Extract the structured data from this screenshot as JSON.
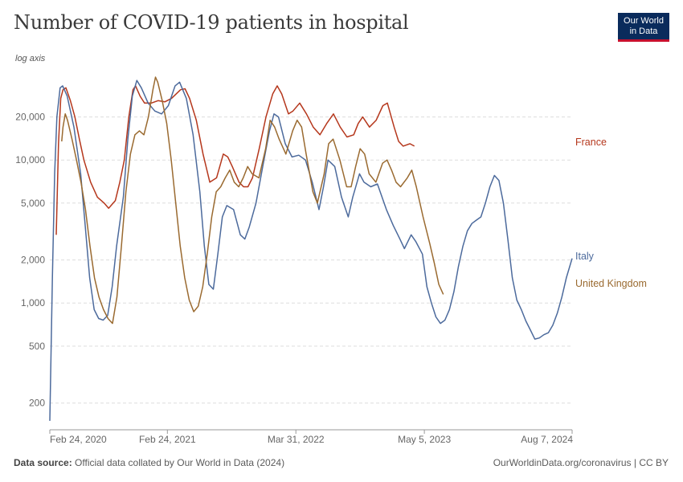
{
  "header": {
    "title": "Number of COVID-19 patients in hospital",
    "logo_line1": "Our World",
    "logo_line2": "in Data",
    "axis_note": "log axis"
  },
  "footer": {
    "source_label": "Data source:",
    "source_text": "Official data collated by Our World in Data (2024)",
    "url_text": "OurWorldinData.org/coronavirus | CC BY"
  },
  "chart_data": {
    "type": "line",
    "title": "Number of COVID-19 patients in hospital",
    "yscale": "log",
    "ylim": [
      130,
      40000
    ],
    "xlim": [
      "2020-02-24",
      "2024-08-07"
    ],
    "y_ticks": [
      {
        "value": 200,
        "label": "200"
      },
      {
        "value": 500,
        "label": "500"
      },
      {
        "value": 1000,
        "label": "1,000"
      },
      {
        "value": 2000,
        "label": "2,000"
      },
      {
        "value": 5000,
        "label": "5,000"
      },
      {
        "value": 10000,
        "label": "10,000"
      },
      {
        "value": 20000,
        "label": "20,000"
      }
    ],
    "x_ticks": [
      {
        "value": "2020-02-24",
        "label": "Feb 24, 2020"
      },
      {
        "value": "2021-02-24",
        "label": "Feb 24, 2021"
      },
      {
        "value": "2022-03-31",
        "label": "Mar 31, 2022"
      },
      {
        "value": "2023-05-05",
        "label": "May 5, 2023"
      },
      {
        "value": "2024-08-07",
        "label": "Aug 7, 2024"
      }
    ],
    "grid": true,
    "legend": "right, labels at line ends",
    "series": [
      {
        "name": "France",
        "color": "#b5371c",
        "points": [
          [
            "2020-03-15",
            3000
          ],
          [
            "2020-03-22",
            13000
          ],
          [
            "2020-03-29",
            27000
          ],
          [
            "2020-04-05",
            31000
          ],
          [
            "2020-04-14",
            32000
          ],
          [
            "2020-04-28",
            26000
          ],
          [
            "2020-05-12",
            20000
          ],
          [
            "2020-05-26",
            14000
          ],
          [
            "2020-06-09",
            10000
          ],
          [
            "2020-06-30",
            7000
          ],
          [
            "2020-07-21",
            5500
          ],
          [
            "2020-08-11",
            5000
          ],
          [
            "2020-08-25",
            4600
          ],
          [
            "2020-09-15",
            5200
          ],
          [
            "2020-09-29",
            7000
          ],
          [
            "2020-10-13",
            10000
          ],
          [
            "2020-10-27",
            20000
          ],
          [
            "2020-11-09",
            31000
          ],
          [
            "2020-11-17",
            33000
          ],
          [
            "2020-12-01",
            28000
          ],
          [
            "2020-12-15",
            25000
          ],
          [
            "2021-01-05",
            25000
          ],
          [
            "2021-01-26",
            26000
          ],
          [
            "2021-02-16",
            25500
          ],
          [
            "2021-03-09",
            27000
          ],
          [
            "2021-04-06",
            31000
          ],
          [
            "2021-04-20",
            31500
          ],
          [
            "2021-05-04",
            27000
          ],
          [
            "2021-05-25",
            19000
          ],
          [
            "2021-06-15",
            11000
          ],
          [
            "2021-07-06",
            7000
          ],
          [
            "2021-07-27",
            7500
          ],
          [
            "2021-08-17",
            11000
          ],
          [
            "2021-08-31",
            10500
          ],
          [
            "2021-09-14",
            9000
          ],
          [
            "2021-10-05",
            7000
          ],
          [
            "2021-10-19",
            6500
          ],
          [
            "2021-11-02",
            6500
          ],
          [
            "2021-11-16",
            7500
          ],
          [
            "2021-12-07",
            12000
          ],
          [
            "2021-12-28",
            20000
          ],
          [
            "2022-01-18",
            29000
          ],
          [
            "2022-02-01",
            33000
          ],
          [
            "2022-02-15",
            29000
          ],
          [
            "2022-03-08",
            21000
          ],
          [
            "2022-03-22",
            22000
          ],
          [
            "2022-04-12",
            25000
          ],
          [
            "2022-05-03",
            21000
          ],
          [
            "2022-05-24",
            17000
          ],
          [
            "2022-06-14",
            15000
          ],
          [
            "2022-07-05",
            18000
          ],
          [
            "2022-07-26",
            21000
          ],
          [
            "2022-08-16",
            17000
          ],
          [
            "2022-09-06",
            14500
          ],
          [
            "2022-09-27",
            15000
          ],
          [
            "2022-10-11",
            18000
          ],
          [
            "2022-10-25",
            20000
          ],
          [
            "2022-11-15",
            17000
          ],
          [
            "2022-12-06",
            19000
          ],
          [
            "2022-12-27",
            24000
          ],
          [
            "2023-01-10",
            25000
          ],
          [
            "2023-01-31",
            17000
          ],
          [
            "2023-02-14",
            13500
          ],
          [
            "2023-02-28",
            12500
          ],
          [
            "2023-03-21",
            13000
          ],
          [
            "2023-04-04",
            12500
          ]
        ]
      },
      {
        "name": "Italy",
        "color": "#4c6a9c",
        "points": [
          [
            "2020-02-24",
            150
          ],
          [
            "2020-03-03",
            1500
          ],
          [
            "2020-03-10",
            8000
          ],
          [
            "2020-03-17",
            20000
          ],
          [
            "2020-03-27",
            32000
          ],
          [
            "2020-04-04",
            33000
          ],
          [
            "2020-04-18",
            28000
          ],
          [
            "2020-05-09",
            17000
          ],
          [
            "2020-05-30",
            8000
          ],
          [
            "2020-06-13",
            3500
          ],
          [
            "2020-06-27",
            1500
          ],
          [
            "2020-07-11",
            900
          ],
          [
            "2020-07-25",
            780
          ],
          [
            "2020-08-08",
            760
          ],
          [
            "2020-08-22",
            820
          ],
          [
            "2020-09-05",
            1300
          ],
          [
            "2020-09-19",
            2500
          ],
          [
            "2020-10-10",
            5500
          ],
          [
            "2020-10-24",
            14000
          ],
          [
            "2020-11-07",
            28000
          ],
          [
            "2020-11-21",
            36000
          ],
          [
            "2020-12-05",
            32000
          ],
          [
            "2020-12-26",
            25000
          ],
          [
            "2021-01-16",
            22000
          ],
          [
            "2021-02-06",
            21000
          ],
          [
            "2021-02-27",
            24000
          ],
          [
            "2021-03-20",
            33000
          ],
          [
            "2021-04-03",
            35000
          ],
          [
            "2021-04-24",
            27000
          ],
          [
            "2021-05-15",
            15000
          ],
          [
            "2021-06-05",
            6000
          ],
          [
            "2021-06-19",
            2500
          ],
          [
            "2021-07-03",
            1350
          ],
          [
            "2021-07-17",
            1250
          ],
          [
            "2021-07-31",
            2200
          ],
          [
            "2021-08-14",
            4000
          ],
          [
            "2021-08-28",
            4800
          ],
          [
            "2021-09-18",
            4500
          ],
          [
            "2021-10-09",
            3000
          ],
          [
            "2021-10-23",
            2800
          ],
          [
            "2021-11-06",
            3400
          ],
          [
            "2021-11-27",
            5000
          ],
          [
            "2021-12-18",
            9000
          ],
          [
            "2022-01-08",
            16000
          ],
          [
            "2022-01-22",
            21000
          ],
          [
            "2022-02-05",
            20000
          ],
          [
            "2022-02-26",
            13000
          ],
          [
            "2022-03-19",
            10500
          ],
          [
            "2022-04-09",
            10800
          ],
          [
            "2022-04-30",
            10000
          ],
          [
            "2022-05-21",
            7000
          ],
          [
            "2022-06-11",
            4500
          ],
          [
            "2022-06-25",
            6500
          ],
          [
            "2022-07-09",
            10000
          ],
          [
            "2022-07-30",
            9000
          ],
          [
            "2022-08-20",
            5500
          ],
          [
            "2022-09-10",
            4000
          ],
          [
            "2022-09-24",
            5500
          ],
          [
            "2022-10-15",
            8000
          ],
          [
            "2022-10-29",
            7000
          ],
          [
            "2022-11-19",
            6500
          ],
          [
            "2022-12-10",
            6800
          ],
          [
            "2023-01-07",
            4500
          ],
          [
            "2023-01-28",
            3500
          ],
          [
            "2023-02-18",
            2800
          ],
          [
            "2023-03-04",
            2400
          ],
          [
            "2023-03-25",
            3000
          ],
          [
            "2023-04-08",
            2700
          ],
          [
            "2023-04-29",
            2200
          ],
          [
            "2023-05-13",
            1300
          ],
          [
            "2023-05-27",
            1000
          ],
          [
            "2023-06-10",
            800
          ],
          [
            "2023-06-24",
            720
          ],
          [
            "2023-07-08",
            760
          ],
          [
            "2023-07-22",
            900
          ],
          [
            "2023-08-05",
            1200
          ],
          [
            "2023-08-19",
            1800
          ],
          [
            "2023-09-02",
            2500
          ],
          [
            "2023-09-16",
            3200
          ],
          [
            "2023-09-30",
            3600
          ],
          [
            "2023-10-14",
            3800
          ],
          [
            "2023-10-28",
            4000
          ],
          [
            "2023-11-11",
            5000
          ],
          [
            "2023-11-25",
            6500
          ],
          [
            "2023-12-09",
            7800
          ],
          [
            "2023-12-23",
            7200
          ],
          [
            "2024-01-06",
            5000
          ],
          [
            "2024-01-20",
            2800
          ],
          [
            "2024-02-03",
            1500
          ],
          [
            "2024-02-17",
            1050
          ],
          [
            "2024-03-02",
            900
          ],
          [
            "2024-03-16",
            750
          ],
          [
            "2024-03-30",
            650
          ],
          [
            "2024-04-13",
            560
          ],
          [
            "2024-04-27",
            570
          ],
          [
            "2024-05-11",
            600
          ],
          [
            "2024-05-25",
            620
          ],
          [
            "2024-06-08",
            700
          ],
          [
            "2024-06-22",
            850
          ],
          [
            "2024-07-06",
            1100
          ],
          [
            "2024-07-20",
            1500
          ],
          [
            "2024-08-07",
            2050
          ]
        ]
      },
      {
        "name": "United Kingdom",
        "color": "#9a6a30",
        "points": [
          [
            "2020-04-01",
            13500
          ],
          [
            "2020-04-05",
            17000
          ],
          [
            "2020-04-12",
            21000
          ],
          [
            "2020-04-19",
            19000
          ],
          [
            "2020-05-03",
            14000
          ],
          [
            "2020-05-17",
            10000
          ],
          [
            "2020-05-31",
            7000
          ],
          [
            "2020-06-14",
            4500
          ],
          [
            "2020-06-28",
            2500
          ],
          [
            "2020-07-12",
            1500
          ],
          [
            "2020-07-26",
            1100
          ],
          [
            "2020-08-09",
            900
          ],
          [
            "2020-08-23",
            780
          ],
          [
            "2020-09-06",
            720
          ],
          [
            "2020-09-20",
            1100
          ],
          [
            "2020-10-04",
            2500
          ],
          [
            "2020-10-18",
            6000
          ],
          [
            "2020-11-01",
            11000
          ],
          [
            "2020-11-15",
            15000
          ],
          [
            "2020-11-29",
            16000
          ],
          [
            "2020-12-13",
            15000
          ],
          [
            "2020-12-27",
            20000
          ],
          [
            "2021-01-10",
            31000
          ],
          [
            "2021-01-18",
            38000
          ],
          [
            "2021-01-25",
            35000
          ],
          [
            "2021-02-08",
            26000
          ],
          [
            "2021-02-22",
            18000
          ],
          [
            "2021-03-08",
            10000
          ],
          [
            "2021-03-22",
            5000
          ],
          [
            "2021-04-05",
            2500
          ],
          [
            "2021-04-19",
            1500
          ],
          [
            "2021-05-03",
            1050
          ],
          [
            "2021-05-17",
            870
          ],
          [
            "2021-05-31",
            950
          ],
          [
            "2021-06-14",
            1300
          ],
          [
            "2021-06-28",
            2200
          ],
          [
            "2021-07-12",
            4000
          ],
          [
            "2021-07-26",
            6000
          ],
          [
            "2021-08-09",
            6500
          ],
          [
            "2021-08-23",
            7500
          ],
          [
            "2021-09-06",
            8500
          ],
          [
            "2021-09-20",
            7000
          ],
          [
            "2021-10-04",
            6500
          ],
          [
            "2021-10-18",
            7500
          ],
          [
            "2021-11-01",
            9000
          ],
          [
            "2021-11-15",
            8000
          ],
          [
            "2021-12-06",
            7500
          ],
          [
            "2021-12-27",
            12000
          ],
          [
            "2022-01-10",
            19000
          ],
          [
            "2022-01-24",
            17000
          ],
          [
            "2022-02-07",
            14000
          ],
          [
            "2022-02-28",
            11000
          ],
          [
            "2022-03-21",
            16000
          ],
          [
            "2022-04-04",
            19000
          ],
          [
            "2022-04-18",
            17000
          ],
          [
            "2022-05-02",
            11000
          ],
          [
            "2022-05-23",
            6000
          ],
          [
            "2022-06-06",
            5000
          ],
          [
            "2022-06-27",
            8000
          ],
          [
            "2022-07-11",
            13000
          ],
          [
            "2022-07-25",
            14000
          ],
          [
            "2022-08-15",
            10000
          ],
          [
            "2022-09-05",
            6500
          ],
          [
            "2022-09-19",
            6500
          ],
          [
            "2022-10-03",
            9000
          ],
          [
            "2022-10-17",
            12000
          ],
          [
            "2022-10-31",
            11000
          ],
          [
            "2022-11-14",
            8000
          ],
          [
            "2022-12-05",
            7000
          ],
          [
            "2022-12-26",
            9500
          ],
          [
            "2023-01-09",
            10000
          ],
          [
            "2023-01-23",
            8500
          ],
          [
            "2023-02-06",
            7000
          ],
          [
            "2023-02-20",
            6500
          ],
          [
            "2023-03-13",
            7500
          ],
          [
            "2023-03-27",
            8500
          ],
          [
            "2023-04-10",
            6500
          ],
          [
            "2023-05-01",
            4000
          ],
          [
            "2023-05-22",
            2600
          ],
          [
            "2023-06-05",
            1900
          ],
          [
            "2023-06-19",
            1350
          ],
          [
            "2023-07-03",
            1150
          ]
        ]
      }
    ]
  }
}
